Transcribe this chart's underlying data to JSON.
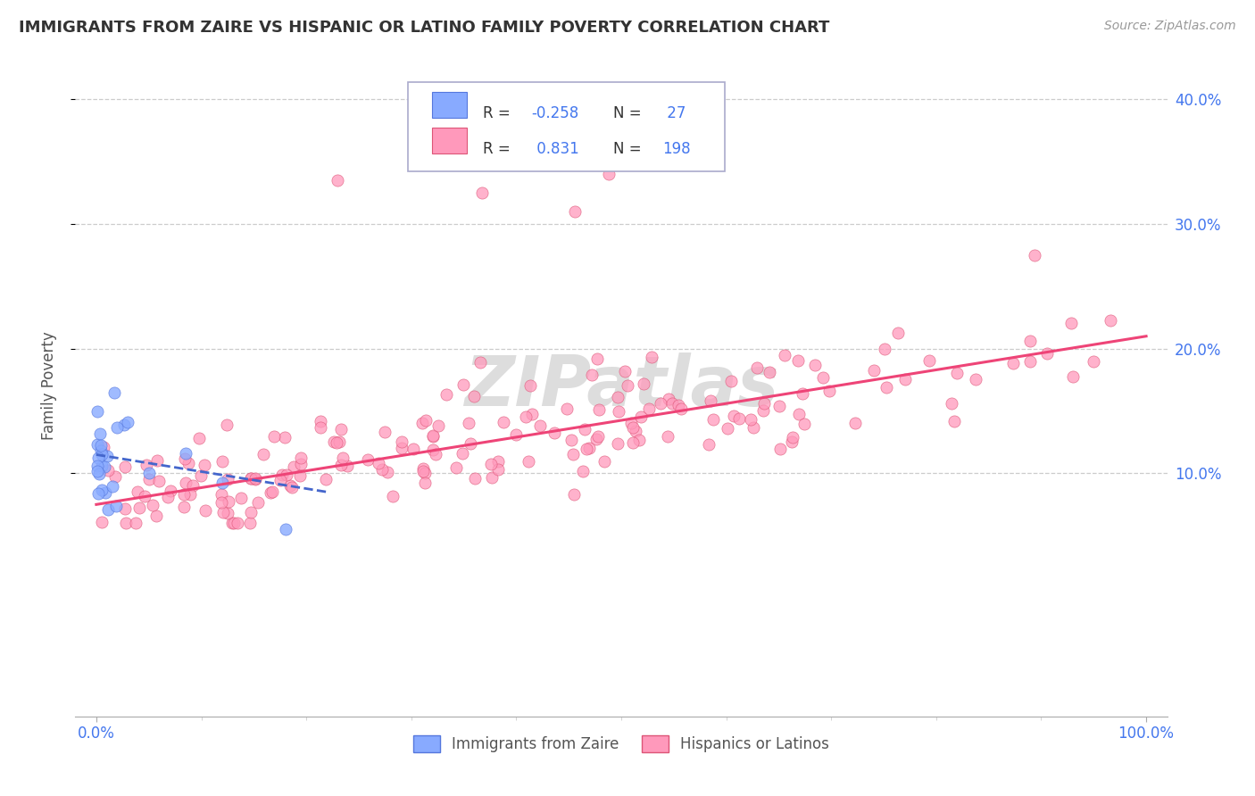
{
  "title": "IMMIGRANTS FROM ZAIRE VS HISPANIC OR LATINO FAMILY POVERTY CORRELATION CHART",
  "source": "Source: ZipAtlas.com",
  "ylabel": "Family Poverty",
  "xlim": [
    -0.02,
    1.02
  ],
  "ylim": [
    -0.095,
    0.435
  ],
  "y_ticks": [
    0.1,
    0.2,
    0.3,
    0.4
  ],
  "y_tick_labels": [
    "10.0%",
    "20.0%",
    "30.0%",
    "40.0%"
  ],
  "x_tick_left": "0.0%",
  "x_tick_right": "100.0%",
  "blue_color": "#88AAFF",
  "blue_edge_color": "#5577DD",
  "pink_color": "#FF99BB",
  "pink_edge_color": "#DD5577",
  "blue_line_color": "#4466CC",
  "pink_line_color": "#EE4477",
  "grid_color": "#CCCCCC",
  "watermark_color": "#DDDDDD",
  "watermark": "ZIPatlas",
  "right_tick_color": "#4477EE",
  "bottom_label_color": "#4477EE",
  "title_color": "#333333",
  "source_color": "#999999",
  "ylabel_color": "#555555",
  "legend_edge_color": "#AAAACC",
  "r1": "-0.258",
  "n1": "27",
  "r2": "0.831",
  "n2": "198",
  "label_blue": "Immigrants from Zaire",
  "label_pink": "Hispanics or Latinos"
}
